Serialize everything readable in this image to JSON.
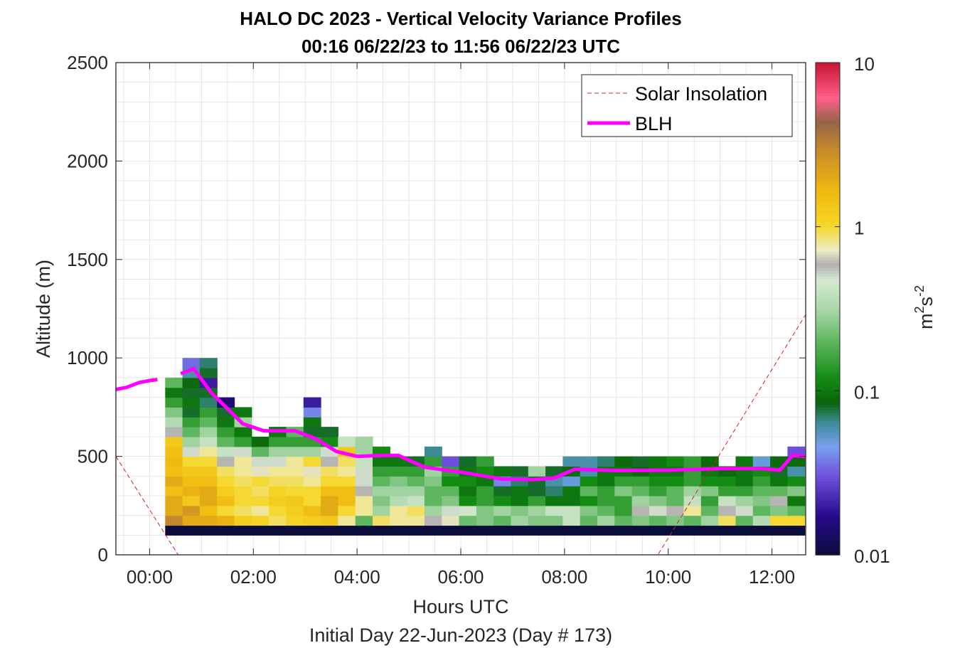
{
  "title": {
    "line1": "HALO DC 2023 - Vertical Velocity Variance Profiles",
    "line2": "00:16 06/22/23 to 11:56 06/22/23  UTC"
  },
  "chart_data": {
    "type": "heatmap",
    "xlabel": "Hours UTC",
    "ylabel": "Altitude (m)",
    "footer": "Initial Day 22-Jun-2023 (Day # 173)",
    "xlim": [
      -0.65,
      12.65
    ],
    "ylim": [
      0,
      2500
    ],
    "xticks": [
      0,
      2,
      4,
      6,
      8,
      10,
      12
    ],
    "xtick_labels": [
      "00:00",
      "02:00",
      "04:00",
      "06:00",
      "08:00",
      "10:00",
      "12:00"
    ],
    "yticks": [
      0,
      500,
      1000,
      1500,
      2000,
      2500
    ],
    "ytick_labels": [
      "0",
      "500",
      "1000",
      "1500",
      "2000",
      "2500"
    ],
    "grid": true,
    "colorbar": {
      "scale": "log",
      "range": [
        0.01,
        10
      ],
      "ticks": [
        0.01,
        0.1,
        1,
        10
      ],
      "tick_labels": [
        "0.01",
        "0.1",
        "1",
        "10"
      ],
      "label_base": "m",
      "label_exp1": "2",
      "label_mid": "s",
      "label_exp2": "-2"
    },
    "legend": {
      "location": "top-right",
      "entries": [
        {
          "label": "Solar Insolation",
          "color": "#d42020",
          "style": "dashed"
        },
        {
          "label": "BLH",
          "color": "#ff00ff",
          "style": "solid"
        }
      ]
    },
    "heatmap": {
      "t_start": 0.3,
      "dt": 0.3333,
      "z_start": 100,
      "dz": 50,
      "columns": [
        [
          0.01,
          3.0,
          2.0,
          2.0,
          1.5,
          2.0,
          1.5,
          1.6,
          1.5,
          1.3,
          0.6,
          0.35,
          0.25,
          0.15,
          0.1,
          0.2
        ],
        [
          0.01,
          2.0,
          2.5,
          1.3,
          1.8,
          1.5,
          1.3,
          1.0,
          0.5,
          0.3,
          0.2,
          0.15,
          0.08,
          0.1,
          0.08,
          0.09,
          0.06,
          0.035
        ],
        [
          0.01,
          2.0,
          1.5,
          2.0,
          2.0,
          1.5,
          1.3,
          1.0,
          0.8,
          0.4,
          0.3,
          0.2,
          0.15,
          0.07,
          0.08,
          0.02,
          0.08,
          0.07
        ],
        [
          0.01,
          1.8,
          1.0,
          1.5,
          1.2,
          1.0,
          0.9,
          0.6,
          0.4,
          0.2,
          0.15,
          0.1,
          0.08,
          0.015
        ],
        [
          0.01,
          1.2,
          0.9,
          1.0,
          1.0,
          0.9,
          0.8,
          0.8,
          0.5,
          0.15,
          0.1,
          0.3,
          0.1
        ],
        [
          0.01,
          1.1,
          0.8,
          1.0,
          0.9,
          1.0,
          0.7,
          0.5,
          0.2,
          0.09
        ],
        [
          0.01,
          0.9,
          1.0,
          1.2,
          1.1,
          0.9,
          0.8,
          0.5,
          0.3,
          0.15,
          0.1
        ],
        [
          0.01,
          1.1,
          1.2,
          1.3,
          1.0,
          0.9,
          0.8,
          0.8,
          0.3,
          0.15,
          0.2
        ],
        [
          0.01,
          1.2,
          1.5,
          1.0,
          1.0,
          0.8,
          0.7,
          1.0,
          0.3,
          0.15,
          0.08,
          0.1,
          0.04,
          0.02
        ],
        [
          0.01,
          1.3,
          2.0,
          2.0,
          1.5,
          1.0,
          0.9,
          0.6,
          0.5,
          0.12,
          0.08
        ],
        [
          0.01,
          0.8,
          1.0,
          1.5,
          1.5,
          1.0,
          0.8,
          0.9,
          1.3,
          0.4
        ],
        [
          0.01,
          0.2,
          0.8,
          0.8,
          0.6,
          0.5,
          0.5,
          0.4,
          0.3,
          0.3
        ],
        [
          0.01,
          0.9,
          0.3,
          0.25,
          0.3,
          0.2,
          0.15,
          0.1,
          0.12
        ],
        [
          0.01,
          0.8,
          0.8,
          0.35,
          0.3,
          0.25,
          0.15,
          0.1
        ],
        [
          0.01,
          0.8,
          0.9,
          0.4,
          0.3,
          0.2,
          0.15,
          0.08
        ],
        [
          0.01,
          0.6,
          0.3,
          0.2,
          0.2,
          0.25,
          0.3,
          0.15,
          0.065
        ],
        [
          0.01,
          0.7,
          0.5,
          0.25,
          0.2,
          0.12,
          0.15,
          0.03
        ],
        [
          0.01,
          0.22,
          0.45,
          0.12,
          0.1,
          0.12,
          0.1,
          0.08
        ],
        [
          0.01,
          0.25,
          0.25,
          0.15,
          0.15,
          0.1,
          0.12,
          0.15
        ],
        [
          0.01,
          0.2,
          0.3,
          0.12,
          0.08,
          0.04,
          0.1
        ],
        [
          0.01,
          0.3,
          0.25,
          0.1,
          0.1,
          0.07,
          0.08
        ],
        [
          0.01,
          0.25,
          0.3,
          0.15,
          0.08,
          0.08,
          0.3
        ],
        [
          0.01,
          0.25,
          0.4,
          0.1,
          0.07,
          0.06,
          0.08
        ],
        [
          0.01,
          0.4,
          0.4,
          0.1,
          0.1,
          0.05,
          0.09,
          0.06
        ],
        [
          0.01,
          0.2,
          0.25,
          0.12,
          0.2,
          0.12,
          0.06,
          0.06
        ],
        [
          0.01,
          0.3,
          0.2,
          0.15,
          0.15,
          0.1,
          0.1,
          0.07
        ],
        [
          0.01,
          0.2,
          0.15,
          0.15,
          0.25,
          0.15,
          0.1,
          0.09
        ],
        [
          0.01,
          0.25,
          0.6,
          0.3,
          0.2,
          0.15,
          0.09,
          0.08
        ],
        [
          0.01,
          0.2,
          0.5,
          0.25,
          0.15,
          0.12,
          0.1,
          0.1
        ],
        [
          0.01,
          0.25,
          0.6,
          0.2,
          0.2,
          0.12,
          0.1,
          0.12
        ],
        [
          0.01,
          0.2,
          0.8,
          0.4,
          0.3,
          0.15,
          0.15,
          0.15
        ],
        [
          0.01,
          0.3,
          0.2,
          0.15,
          0.25,
          0.12,
          0.1,
          0.09
        ],
        [
          0.01,
          0.9,
          0.6,
          0.4,
          0.15,
          0.12,
          0.09
        ],
        [
          0.01,
          0.2,
          0.5,
          0.3,
          0.15,
          0.1,
          0.1,
          0.1
        ],
        [
          0.01,
          0.35,
          0.2,
          0.25,
          0.2,
          0.15,
          0.12,
          0.05
        ],
        [
          0.01,
          1.0,
          0.25,
          0.6,
          0.2,
          0.1,
          0.08,
          0.09
        ],
        [
          0.01,
          1.0,
          0.2,
          0.1,
          0.25,
          0.12,
          0.06,
          0.09,
          0.03
        ]
      ]
    },
    "series": [
      {
        "name": "BLH",
        "x": [
          -0.65,
          -0.45,
          -0.2,
          0.0,
          0.15,
          0.6,
          0.85,
          1.2,
          1.8,
          2.2,
          2.8,
          3.2,
          3.6,
          4.0,
          4.5,
          4.8,
          5.3,
          6.0,
          6.8,
          7.4,
          7.8,
          8.2,
          9.0,
          10.0,
          11.0,
          11.8,
          12.15,
          12.4,
          12.65
        ],
        "y": [
          840,
          850,
          875,
          885,
          890,
          920,
          945,
          820,
          665,
          630,
          630,
          590,
          525,
          500,
          505,
          505,
          445,
          420,
          385,
          382,
          390,
          435,
          428,
          430,
          438,
          438,
          430,
          505,
          500
        ],
        "gaps_after": [
          4
        ]
      },
      {
        "name": "Solar Insolation",
        "x": [
          -0.65,
          0.55,
          9.8,
          12.65
        ],
        "y": [
          500,
          0,
          0,
          1220
        ]
      }
    ]
  }
}
